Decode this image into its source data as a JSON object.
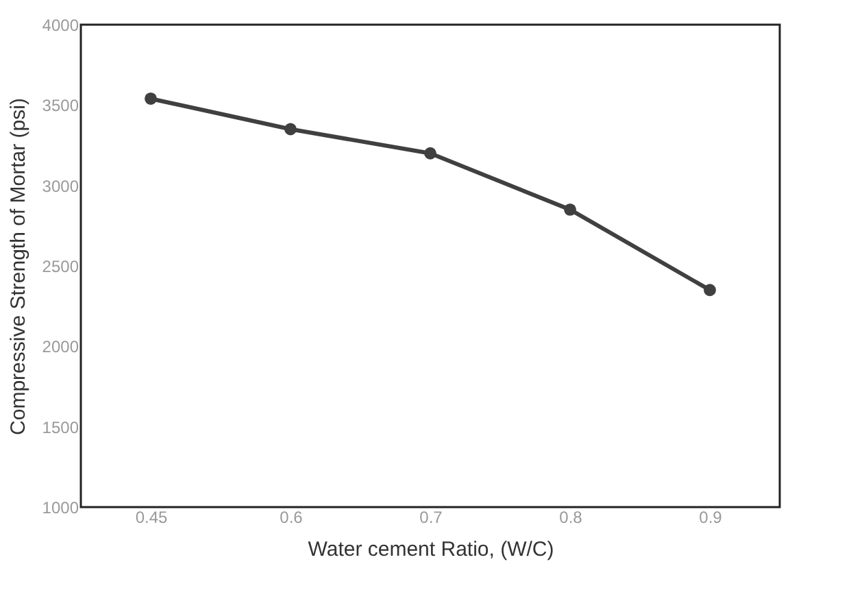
{
  "chart_data": {
    "type": "line",
    "xlabel": "Water cement Ratio, (W/C)",
    "ylabel": "Compressive Strength of Mortar (psi)",
    "categories": [
      "0.45",
      "0.6",
      "0.7",
      "0.8",
      "0.9"
    ],
    "series": [
      {
        "color": "#404040",
        "values": [
          3540,
          3350,
          3200,
          2850,
          2350
        ]
      }
    ],
    "ylim": [
      1000,
      4000
    ],
    "yticks": [
      1000,
      1500,
      2000,
      2500,
      3000,
      3500,
      4000
    ],
    "grid": false,
    "marker": "circle",
    "line_style": "solid"
  }
}
